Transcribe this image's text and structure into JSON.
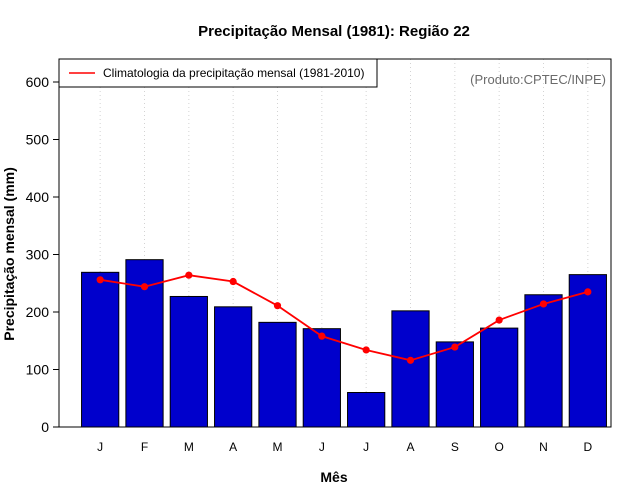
{
  "chart_data": {
    "type": "bar",
    "title": "Precipitação Mensal (1981): Região 22",
    "xlabel": "Mês",
    "ylabel": "Precipitação mensal (mm)",
    "categories": [
      "J",
      "F",
      "M",
      "A",
      "M",
      "J",
      "J",
      "A",
      "S",
      "O",
      "N",
      "D"
    ],
    "ylim": [
      0,
      640
    ],
    "yticks": [
      0,
      100,
      200,
      300,
      400,
      500,
      600
    ],
    "grid": "vertical dotted",
    "series": [
      {
        "name": "Precipitação mensal (1981)",
        "type": "bar",
        "color": "#0000cc",
        "values": [
          269,
          291,
          227,
          209,
          182,
          171,
          60,
          202,
          148,
          172,
          230,
          265
        ]
      },
      {
        "name": "Climatologia da precipitação mensal (1981-2010)",
        "type": "line",
        "color": "#ff0000",
        "values": [
          256,
          244,
          264,
          253,
          211,
          158,
          134,
          116,
          139,
          186,
          214,
          235
        ]
      }
    ],
    "legend": {
      "label": "Climatologia da precipitação mensal (1981-2010)",
      "position": "top-left"
    },
    "annotation": "(Produto:CPTEC/INPE)"
  }
}
